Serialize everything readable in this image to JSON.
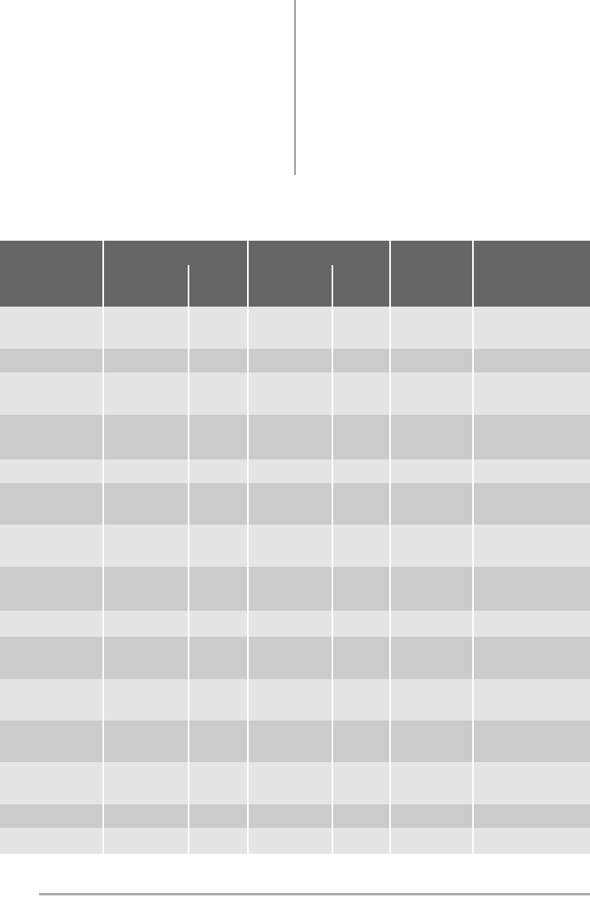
{
  "colors": {
    "header": "#666666",
    "row_light": "#e5e5e5",
    "row_dark": "#cbcbcb",
    "divider": "#ffffff",
    "rule": "#aaaaaa"
  },
  "table": {
    "columns": 6,
    "rows": [
      "light",
      "dark",
      "light",
      "dark",
      "light",
      "dark",
      "light",
      "dark",
      "light",
      "dark",
      "light",
      "dark",
      "light",
      "dark",
      "light"
    ]
  }
}
